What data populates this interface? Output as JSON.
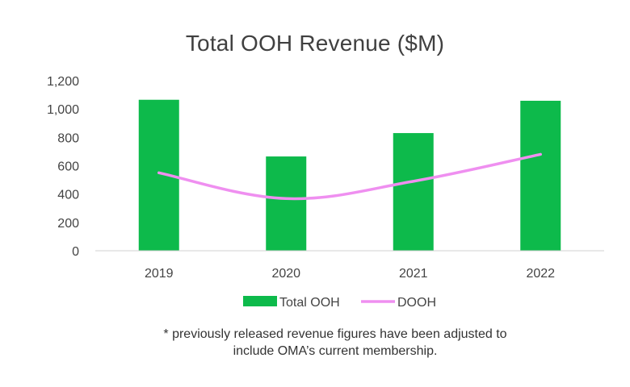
{
  "chart_data": {
    "type": "bar",
    "title": "Total OOH Revenue ($M)",
    "categories": [
      "2019",
      "2020",
      "2021",
      "2022"
    ],
    "series": [
      {
        "name": "Total OOH",
        "type": "bar",
        "color": "#0dba4b",
        "values": [
          1065,
          665,
          830,
          1058
        ]
      },
      {
        "name": "DOOH",
        "type": "line",
        "color": "#ef8ff0",
        "values": [
          550,
          368,
          490,
          680
        ]
      }
    ],
    "ylim": [
      0,
      1200
    ],
    "yticks": [
      "0",
      "200",
      "400",
      "600",
      "800",
      "1,000",
      "1,200"
    ],
    "grid": false,
    "legend_position": "bottom"
  },
  "footnote": {
    "line1": "* previously released revenue figures have been adjusted to",
    "line2": "include OMA’s current membership."
  }
}
